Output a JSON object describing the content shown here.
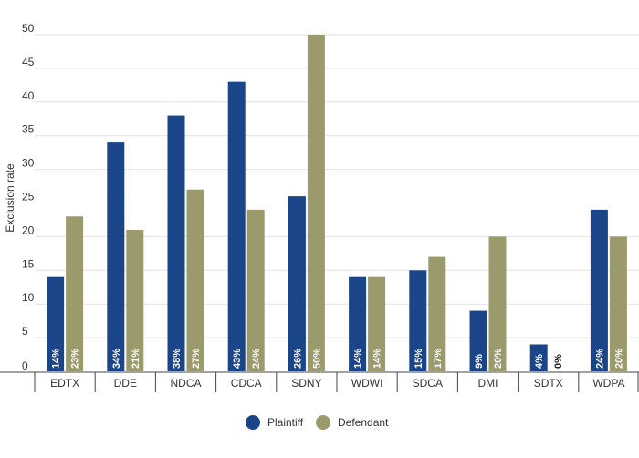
{
  "chart_data": {
    "type": "bar",
    "ylabel": "Exclusion rate",
    "xlabel": "",
    "ylim": [
      0,
      50
    ],
    "yticks": [
      0,
      5,
      10,
      15,
      20,
      25,
      30,
      35,
      40,
      45,
      50
    ],
    "grid": true,
    "legend_position": "bottom-center",
    "categories": [
      "EDTX",
      "DDE",
      "NDCA",
      "CDCA",
      "SDNY",
      "WDWI",
      "SDCA",
      "DMI",
      "SDTX",
      "WDPA"
    ],
    "series": [
      {
        "name": "Plaintiff",
        "color": "#1a4589",
        "values": [
          14,
          34,
          38,
          43,
          26,
          14,
          15,
          9,
          4,
          24
        ],
        "labels": [
          "14%",
          "34%",
          "38%",
          "43%",
          "26%",
          "14%",
          "15%",
          "9%",
          "4%",
          "24%"
        ]
      },
      {
        "name": "Defendant",
        "color": "#9b9a6c",
        "values": [
          23,
          21,
          27,
          24,
          50,
          14,
          17,
          20,
          0,
          20
        ],
        "labels": [
          "23%",
          "21%",
          "27%",
          "24%",
          "50%",
          "14%",
          "17%",
          "20%",
          "0%",
          "20%"
        ]
      }
    ]
  }
}
